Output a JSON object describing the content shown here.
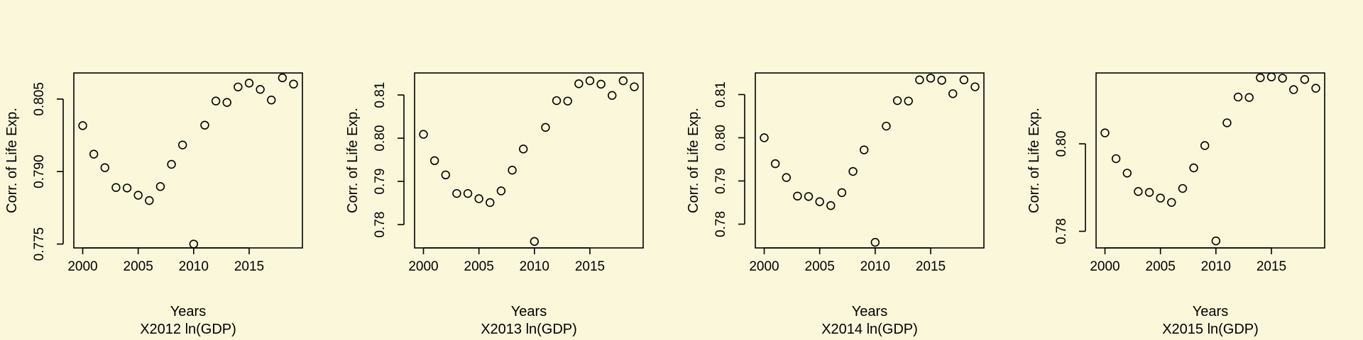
{
  "chart_data": [
    {
      "type": "scatter",
      "title": "",
      "xlabel": "Years",
      "ylabel": "Corr. of Life Exp.",
      "subtitle": "X2012 ln(GDP)",
      "xlim": [
        1999.2,
        2019.8
      ],
      "ylim": [
        0.7742,
        0.8104
      ],
      "xticks": [
        2000,
        2005,
        2010,
        2015
      ],
      "yticks": [
        0.775,
        0.79,
        0.805
      ],
      "ytick_labels": [
        "0.775",
        "0.790",
        "0.805"
      ],
      "grid": false,
      "x": [
        2000,
        2001,
        2002,
        2003,
        2004,
        2005,
        2006,
        2007,
        2008,
        2009,
        2010,
        2011,
        2012,
        2013,
        2014,
        2015,
        2016,
        2017,
        2018,
        2019
      ],
      "y": [
        0.7995,
        0.7936,
        0.7908,
        0.7867,
        0.7866,
        0.7851,
        0.784,
        0.7869,
        0.7915,
        0.7955,
        0.775,
        0.7996,
        0.8046,
        0.8043,
        0.8075,
        0.8083,
        0.807,
        0.8048,
        0.8094,
        0.8081
      ]
    },
    {
      "type": "scatter",
      "title": "",
      "xlabel": "Years",
      "ylabel": "Corr. of Life Exp.",
      "subtitle": "X2013 ln(GDP)",
      "xlim": [
        1999.2,
        2019.8
      ],
      "ylim": [
        0.7746,
        0.8151
      ],
      "xticks": [
        2000,
        2005,
        2010,
        2015
      ],
      "yticks": [
        0.78,
        0.79,
        0.8,
        0.81
      ],
      "ytick_labels": [
        "0.78",
        "0.79",
        "0.80",
        "0.81"
      ],
      "grid": false,
      "x": [
        2000,
        2001,
        2002,
        2003,
        2004,
        2005,
        2006,
        2007,
        2008,
        2009,
        2010,
        2011,
        2012,
        2013,
        2014,
        2015,
        2016,
        2017,
        2018,
        2019
      ],
      "y": [
        0.8009,
        0.7948,
        0.7915,
        0.7872,
        0.7872,
        0.786,
        0.7851,
        0.7878,
        0.7926,
        0.7975,
        0.7761,
        0.8025,
        0.8087,
        0.8086,
        0.8126,
        0.8133,
        0.8125,
        0.8099,
        0.8133,
        0.8119
      ]
    },
    {
      "type": "scatter",
      "title": "",
      "xlabel": "Years",
      "ylabel": "Corr. of Life Exp.",
      "subtitle": "X2014 ln(GDP)",
      "xlim": [
        1999.2,
        2019.8
      ],
      "ylim": [
        0.7745,
        0.815
      ],
      "xticks": [
        2000,
        2005,
        2010,
        2015
      ],
      "yticks": [
        0.78,
        0.79,
        0.8,
        0.81
      ],
      "ytick_labels": [
        "0.78",
        "0.79",
        "0.80",
        "0.81"
      ],
      "grid": false,
      "x": [
        2000,
        2001,
        2002,
        2003,
        2004,
        2005,
        2006,
        2007,
        2008,
        2009,
        2010,
        2011,
        2012,
        2013,
        2014,
        2015,
        2016,
        2017,
        2018,
        2019
      ],
      "y": [
        0.8,
        0.794,
        0.7908,
        0.7865,
        0.7864,
        0.7852,
        0.7843,
        0.7873,
        0.7922,
        0.7972,
        0.7758,
        0.8027,
        0.8086,
        0.8085,
        0.8134,
        0.8138,
        0.8133,
        0.8102,
        0.8134,
        0.8118
      ]
    },
    {
      "type": "scatter",
      "title": "",
      "xlabel": "Years",
      "ylabel": "Corr. of Life Exp.",
      "subtitle": "X2015 ln(GDP)",
      "xlim": [
        1999.2,
        2019.8
      ],
      "ylim": [
        0.7762,
        0.8162
      ],
      "xticks": [
        2000,
        2005,
        2010,
        2015
      ],
      "yticks": [
        0.78,
        0.8
      ],
      "ytick_labels": [
        "0.78",
        "0.80"
      ],
      "grid": false,
      "x": [
        2000,
        2001,
        2002,
        2003,
        2004,
        2005,
        2006,
        2007,
        2008,
        2009,
        2010,
        2011,
        2012,
        2013,
        2014,
        2015,
        2016,
        2017,
        2018,
        2019
      ],
      "y": [
        0.8025,
        0.7966,
        0.7933,
        0.7891,
        0.7889,
        0.7876,
        0.7866,
        0.7898,
        0.7945,
        0.7996,
        0.7778,
        0.8048,
        0.8107,
        0.8106,
        0.8151,
        0.8153,
        0.815,
        0.8124,
        0.8147,
        0.8127
      ]
    }
  ]
}
